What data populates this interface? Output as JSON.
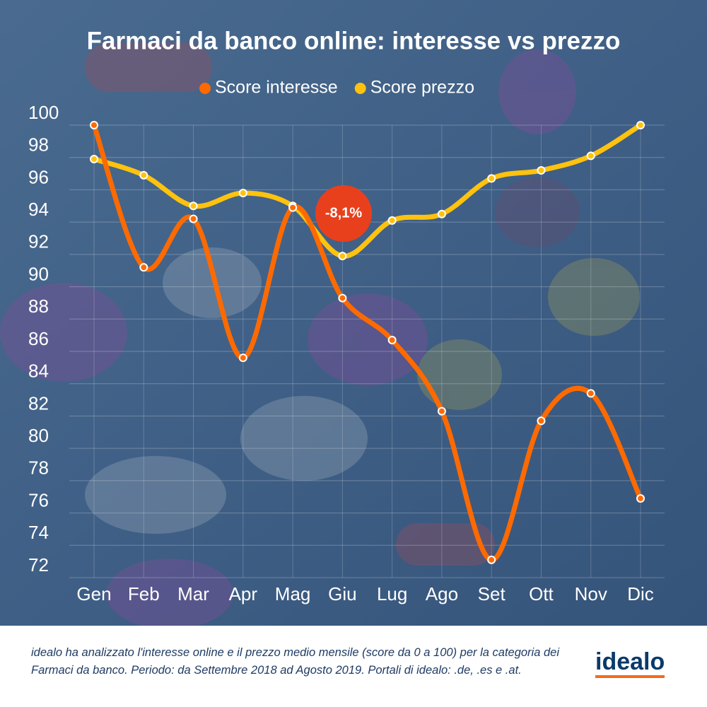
{
  "chart_data": {
    "type": "line",
    "title": "Farmaci da banco online: interesse vs prezzo",
    "categories": [
      "Gen",
      "Feb",
      "Mar",
      "Apr",
      "Mag",
      "Giu",
      "Lug",
      "Ago",
      "Set",
      "Ott",
      "Nov",
      "Dic"
    ],
    "series": [
      {
        "name": "Score interesse",
        "color": "#ff6a00",
        "values": [
          100,
          91.2,
          94.2,
          85.6,
          94.9,
          89.3,
          86.7,
          82.3,
          73.1,
          81.7,
          83.4,
          76.9
        ]
      },
      {
        "name": "Score prezzo",
        "color": "#ffc20e",
        "values": [
          97.9,
          96.9,
          95.0,
          95.8,
          95.0,
          91.9,
          94.1,
          94.5,
          96.7,
          97.2,
          98.1,
          100
        ]
      }
    ],
    "ylim": [
      72,
      100
    ],
    "yticks": [
      72,
      74,
      76,
      78,
      80,
      82,
      84,
      86,
      88,
      90,
      92,
      94,
      96,
      98,
      100
    ],
    "grid": true,
    "annotation": "-8,1%",
    "note": "idealo ha analizzato l'interesse online e il prezzo medio mensile (score da 0 a 100) per la categoria dei Farmaci da banco. Periodo: da Settembre 2018 ad Agosto 2019. Portali di idealo: .de, .es e .at.",
    "logo": "idealo"
  }
}
